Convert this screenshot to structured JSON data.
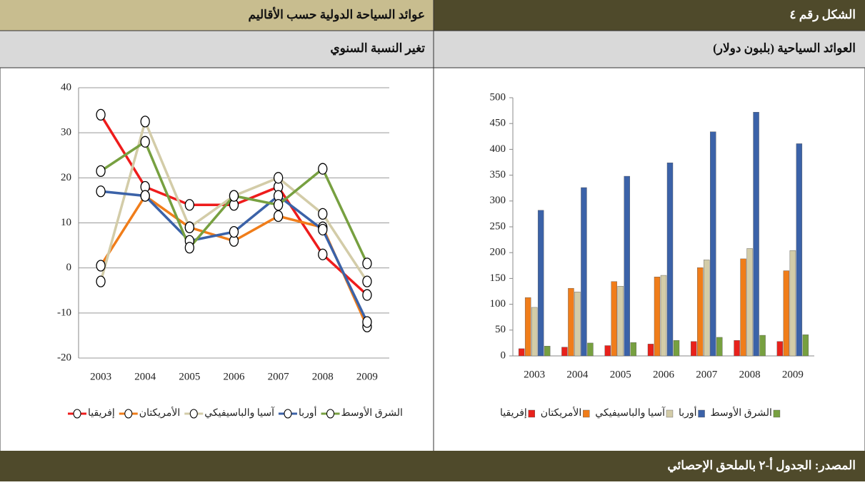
{
  "header": {
    "figure": "الشكل رقم ٤",
    "title": "عوائد السياحة الدولية حسب الأقاليم"
  },
  "chart_data": [
    {
      "type": "bar",
      "title": "العوائد السياحية (بلبون دولار)",
      "categories": [
        "2003",
        "2004",
        "2005",
        "2006",
        "2007",
        "2008",
        "2009"
      ],
      "series": [
        {
          "name": "إفريقيا",
          "color": "#e8211b",
          "values": [
            14,
            17,
            20,
            23,
            28,
            30,
            28
          ]
        },
        {
          "name": "الأمريكتان",
          "color": "#f07d1a",
          "values": [
            113,
            131,
            144,
            153,
            171,
            188,
            165
          ]
        },
        {
          "name": "آسيا والباسيفيكي",
          "color": "#d3cca8",
          "values": [
            94,
            124,
            135,
            156,
            186,
            208,
            204
          ]
        },
        {
          "name": "أوربا",
          "color": "#3b62a8",
          "values": [
            282,
            326,
            348,
            374,
            434,
            472,
            411
          ]
        },
        {
          "name": "الشرق الأوسط",
          "color": "#77a040",
          "values": [
            19,
            25,
            26,
            30,
            36,
            40,
            41
          ]
        }
      ],
      "ylim": [
        0,
        500
      ],
      "yticks": [
        0,
        50,
        100,
        150,
        200,
        250,
        300,
        350,
        400,
        450,
        500
      ],
      "grid": false
    },
    {
      "type": "line",
      "title": "تغير النسبة السنوي",
      "categories": [
        "2003",
        "2004",
        "2005",
        "2006",
        "2007",
        "2008",
        "2009"
      ],
      "series": [
        {
          "name": "إفريقيا",
          "color": "#ee1c1c",
          "values": [
            34,
            18,
            14,
            14,
            18,
            3,
            -6
          ]
        },
        {
          "name": "الأمريكتان",
          "color": "#f07d1a",
          "values": [
            0.5,
            16,
            9,
            6,
            11.5,
            9,
            -13
          ]
        },
        {
          "name": "آسيا والباسيفيكي",
          "color": "#d3cca8",
          "values": [
            -3,
            32.5,
            9,
            16,
            20,
            12,
            -3
          ]
        },
        {
          "name": "أوربا",
          "color": "#3b62a8",
          "values": [
            17,
            16,
            6,
            8,
            16,
            8.5,
            -12
          ]
        },
        {
          "name": "الشرق الأوسط",
          "color": "#77a040",
          "values": [
            21.5,
            28,
            4.5,
            16,
            14,
            22,
            1
          ]
        }
      ],
      "ylim": [
        -20,
        40
      ],
      "yticks": [
        -20,
        -10,
        0,
        10,
        20,
        30,
        40
      ],
      "grid": true
    }
  ],
  "footer": {
    "source": "المصدر: الجدول أ-٢ بالملحق الإحصائي"
  }
}
